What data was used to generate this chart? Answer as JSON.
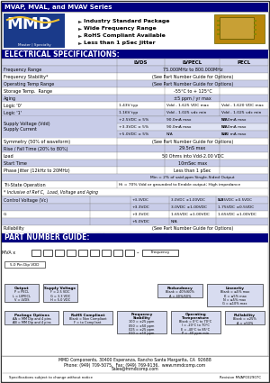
{
  "title_bar": "MVAP, MVAL, and MVAV Series",
  "title_bar_bg": "#000080",
  "title_bar_fg": "#ffffff",
  "bullet_points": [
    "Industry Standard Package",
    "Wide Frequency Range",
    "RoHS Compliant Available",
    "Less than 1 pSec Jitter"
  ],
  "elec_spec_header": "ELECTRICAL SPECIFICATIONS:",
  "elec_header_bg": "#000080",
  "elec_header_fg": "#ffffff",
  "col_headers": [
    "LVDS",
    "LVPECL",
    "PECL"
  ],
  "part_number_header": "PART NUMBER GUIDE:",
  "part_header_bg": "#000080",
  "part_header_fg": "#ffffff",
  "footer_line1": "MMD Components, 30400 Esperanza, Rancho Santa Margarita, CA  92688",
  "footer_line2": "Phone: (949) 709-5075,  Fax: (949) 769-9136,  www.mmdcomp.com",
  "footer_line3": "Sales@mmdcomp.com",
  "footer_note1": "Specifications subject to change without notice",
  "footer_note2": "Revision MVAP032907C",
  "bg_color": "#ffffff",
  "table_alt_bg": "#c8cce8",
  "table_row_bg": "#ffffff",
  "col_hdr_bg": "#d0d4ee",
  "outer_border": "#333333",
  "cell_border": "#888888"
}
